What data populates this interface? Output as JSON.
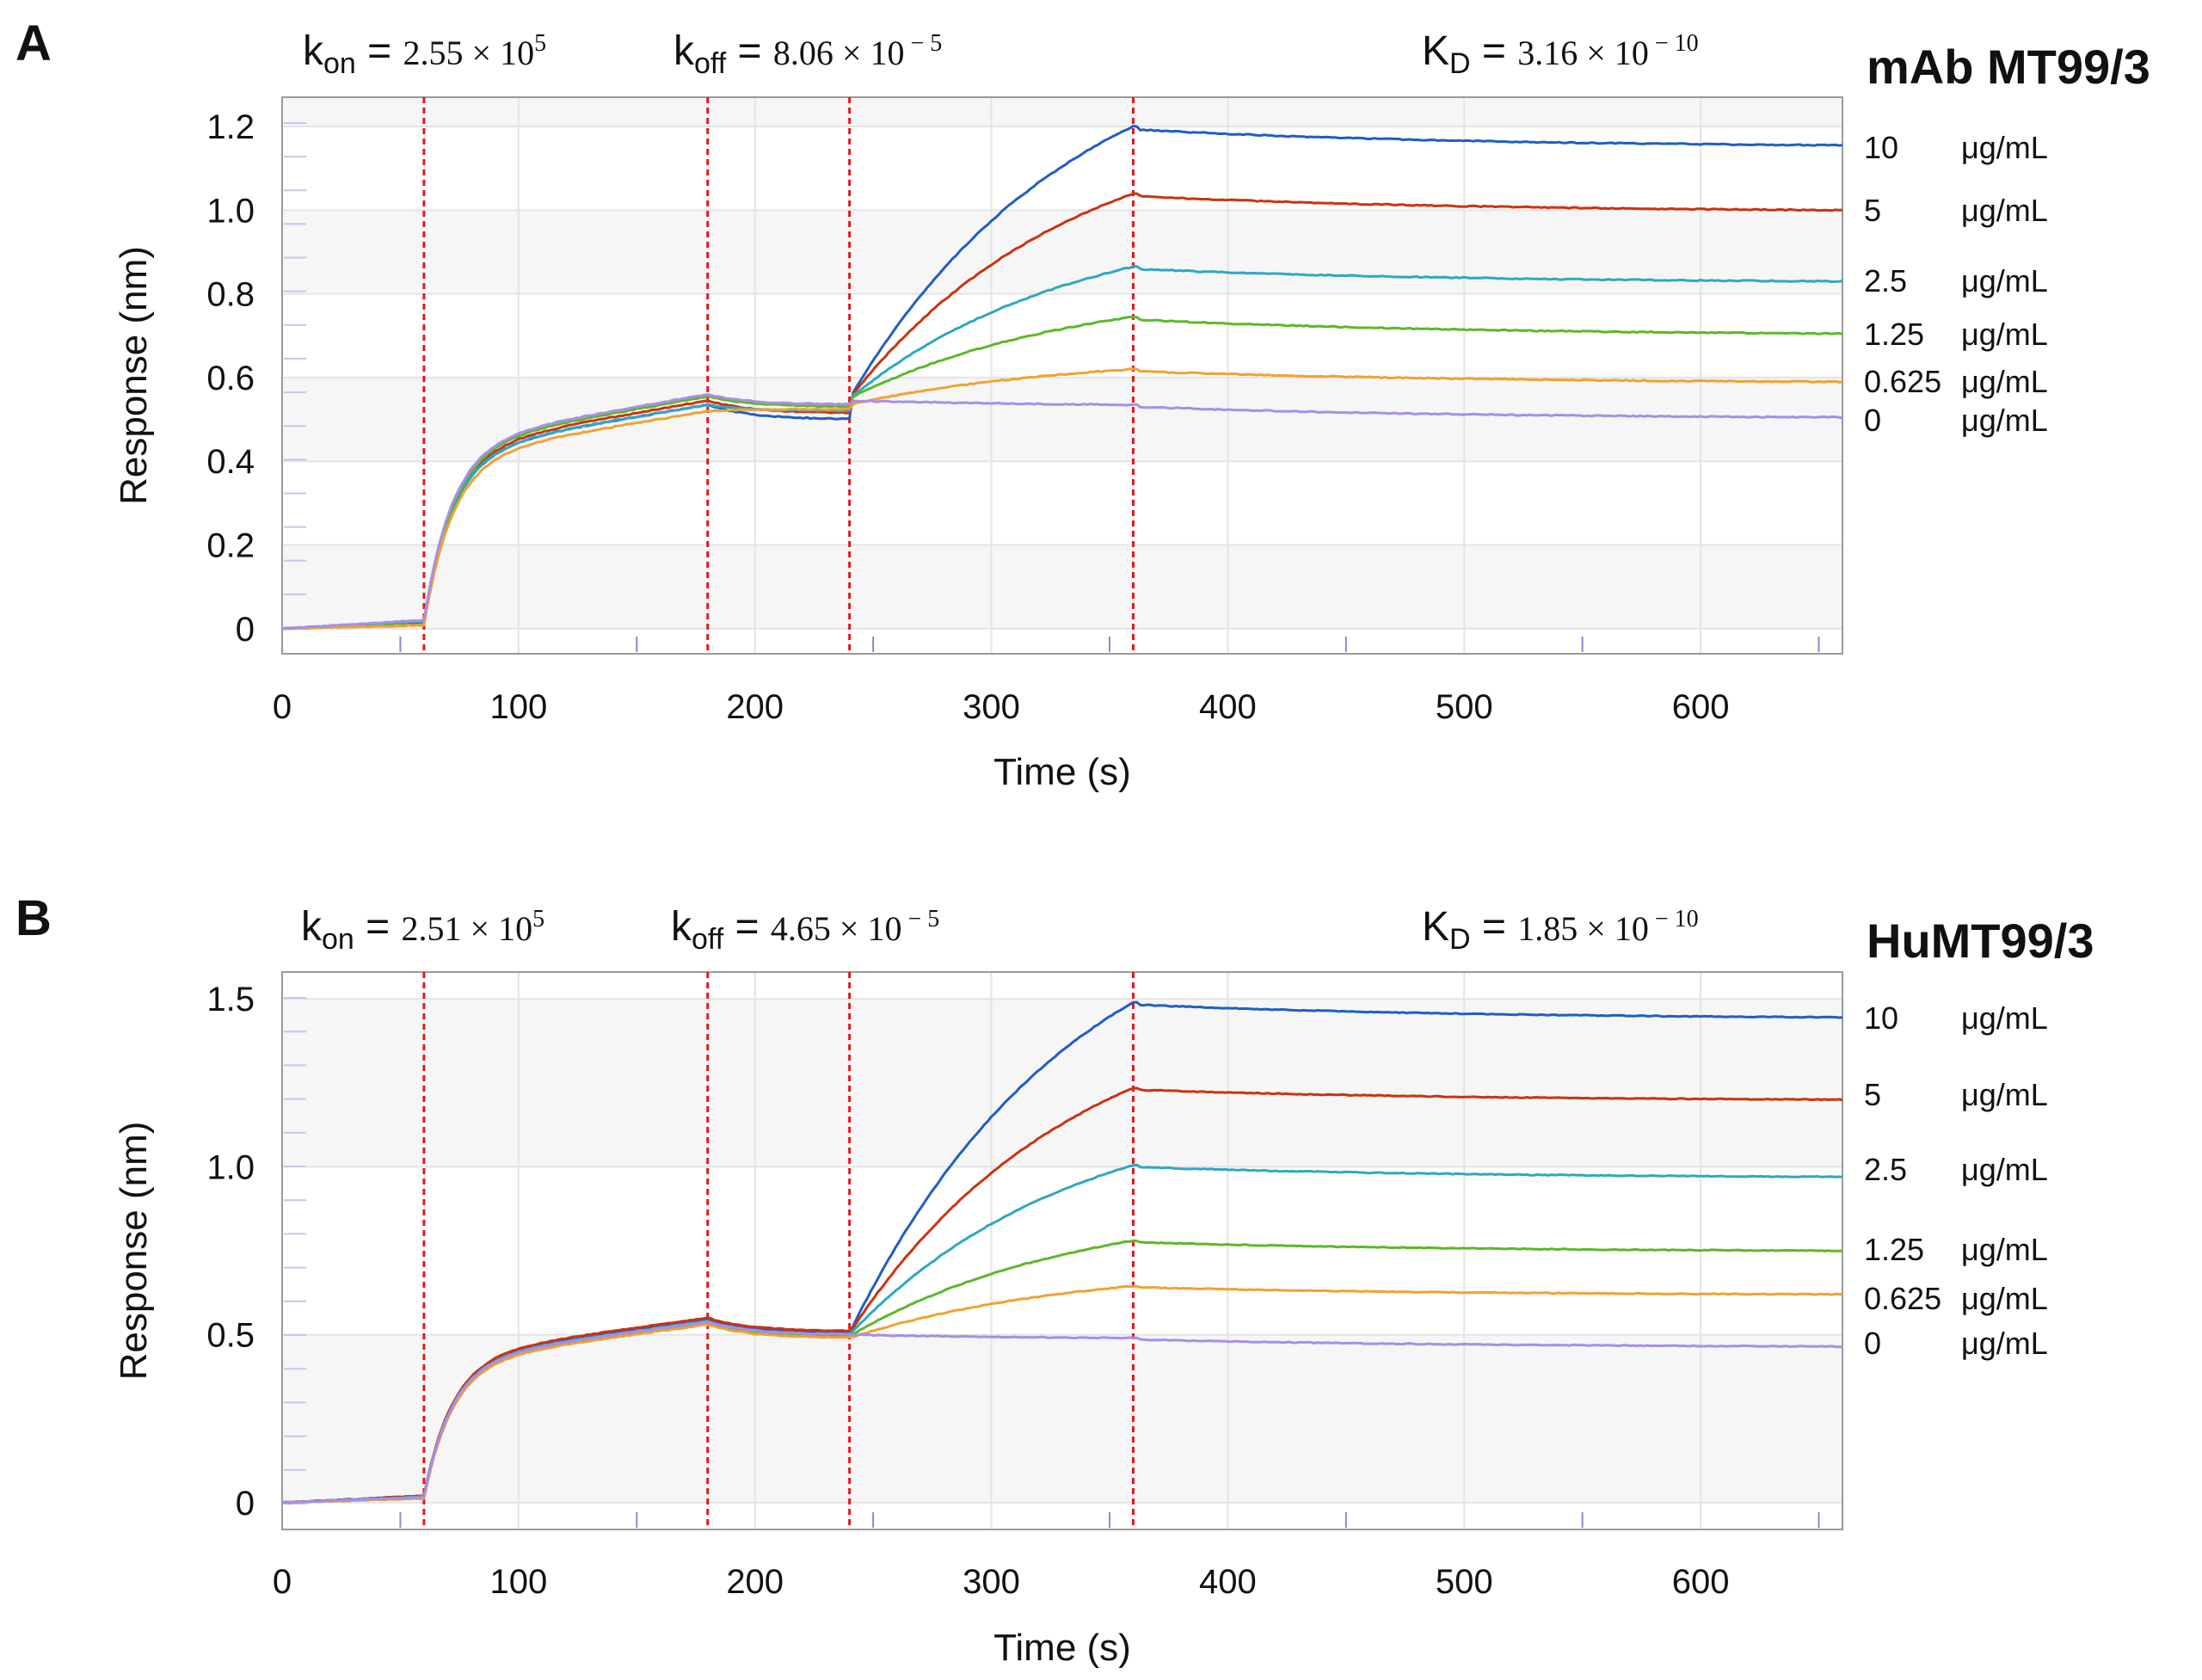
{
  "panels": [
    {
      "panel_letter": "A",
      "sample_title": "mAb MT99/3",
      "constants": {
        "kon_label": "k",
        "kon_sub": "on",
        "kon_eq": " = ",
        "kon_value": "2.55 × 10",
        "kon_exp": "5",
        "koff_label": "k",
        "koff_sub": "off",
        "koff_eq": " = ",
        "koff_value": "8.06 × 10",
        "koff_exp": " − 5",
        "kd_label": "K",
        "kd_sub": "D",
        "kd_eq": " = ",
        "kd_value": "3.16 × 10",
        "kd_exp": " − 10"
      }
    },
    {
      "panel_letter": "B",
      "sample_title": "HuMT99/3",
      "constants": {
        "kon_label": "k",
        "kon_sub": "on",
        "kon_eq": " = ",
        "kon_value": "2.51 × 10",
        "kon_exp": "5",
        "koff_label": "k",
        "koff_sub": "off",
        "koff_eq": " = ",
        "koff_value": "4.65 × 10",
        "koff_exp": " − 5",
        "kd_label": "K",
        "kd_sub": "D",
        "kd_eq": " = ",
        "kd_value": "1.85 × 10",
        "kd_exp": " − 10"
      }
    }
  ],
  "chart_data": [
    {
      "type": "line",
      "panel": "A",
      "title": "mAb MT99/3",
      "xlabel": "Time (s)",
      "ylabel": "Response (nm)",
      "xlim": [
        0,
        660
      ],
      "ylim": [
        -0.06,
        1.27
      ],
      "xticks": [
        0,
        100,
        200,
        300,
        400,
        500,
        600
      ],
      "xtick_labels": [
        "0",
        "100",
        "200",
        "300",
        "400",
        "500",
        "600"
      ],
      "yticks": [
        0,
        0.2,
        0.4,
        0.6,
        0.8,
        1.0,
        1.2
      ],
      "ytick_labels": [
        "0",
        "0.2",
        "0.4",
        "0.6",
        "0.8",
        "1.0",
        "1.2"
      ],
      "step_boundaries": [
        60,
        180,
        240,
        360
      ],
      "step_line_color": "#e8141c",
      "series": [
        {
          "name": "10",
          "unit": "μg/mL",
          "color": "#1f5fc4",
          "baseline_end": 0.015,
          "load_end": 0.535,
          "swap": 0.5,
          "assoc_start": 0.55,
          "assoc_end": 1.2,
          "dissoc_end": 1.155
        },
        {
          "name": "5",
          "unit": "μg/mL",
          "color": "#cc3311",
          "baseline_end": 0.012,
          "load_end": 0.545,
          "swap": 0.515,
          "assoc_start": 0.55,
          "assoc_end": 1.04,
          "dissoc_end": 1.0
        },
        {
          "name": "2.5",
          "unit": "μg/mL",
          "color": "#2ea8c4",
          "baseline_end": 0.018,
          "load_end": 0.535,
          "swap": 0.52,
          "assoc_start": 0.55,
          "assoc_end": 0.865,
          "dissoc_end": 0.83
        },
        {
          "name": "1.25",
          "unit": "μg/mL",
          "color": "#5cb82a",
          "baseline_end": 0.01,
          "load_end": 0.555,
          "swap": 0.53,
          "assoc_start": 0.55,
          "assoc_end": 0.745,
          "dissoc_end": 0.705
        },
        {
          "name": "0.625",
          "unit": "μg/mL",
          "color": "#f0a232",
          "baseline_end": 0.008,
          "load_end": 0.52,
          "swap": 0.525,
          "assoc_start": 0.535,
          "assoc_end": 0.62,
          "dissoc_end": 0.59
        },
        {
          "name": "0",
          "unit": "μg/mL",
          "color": "#a88ee8",
          "baseline_end": 0.02,
          "load_end": 0.56,
          "swap": 0.535,
          "assoc_start": 0.545,
          "assoc_end": 0.535,
          "dissoc_end": 0.505
        }
      ]
    },
    {
      "type": "line",
      "panel": "B",
      "title": "HuMT99/3",
      "xlabel": "Time (s)",
      "ylabel": "Response (nm)",
      "xlim": [
        0,
        660
      ],
      "ylim": [
        -0.08,
        1.58
      ],
      "xticks": [
        0,
        100,
        200,
        300,
        400,
        500,
        600
      ],
      "xtick_labels": [
        "0",
        "100",
        "200",
        "300",
        "400",
        "500",
        "600"
      ],
      "yticks": [
        0,
        0.5,
        1.0,
        1.5
      ],
      "ytick_labels": [
        "0",
        "0.5",
        "1.0",
        "1.5"
      ],
      "step_boundaries": [
        60,
        180,
        240,
        360
      ],
      "step_line_color": "#e8141c",
      "series": [
        {
          "name": "10",
          "unit": "μg/mL",
          "color": "#1f5fc4",
          "baseline_end": 0.02,
          "load_end": 0.545,
          "swap": 0.505,
          "assoc_start": 0.505,
          "assoc_end": 1.49,
          "dissoc_end": 1.445
        },
        {
          "name": "5",
          "unit": "μg/mL",
          "color": "#cc3311",
          "baseline_end": 0.02,
          "load_end": 0.55,
          "swap": 0.51,
          "assoc_start": 0.505,
          "assoc_end": 1.235,
          "dissoc_end": 1.2
        },
        {
          "name": "2.5",
          "unit": "μg/mL",
          "color": "#2ea8c4",
          "baseline_end": 0.018,
          "load_end": 0.54,
          "swap": 0.5,
          "assoc_start": 0.5,
          "assoc_end": 1.005,
          "dissoc_end": 0.97
        },
        {
          "name": "1.25",
          "unit": "μg/mL",
          "color": "#5cb82a",
          "baseline_end": 0.015,
          "load_end": 0.535,
          "swap": 0.495,
          "assoc_start": 0.495,
          "assoc_end": 0.78,
          "dissoc_end": 0.75
        },
        {
          "name": "0.625",
          "unit": "μg/mL",
          "color": "#f0a232",
          "baseline_end": 0.012,
          "load_end": 0.53,
          "swap": 0.49,
          "assoc_start": 0.49,
          "assoc_end": 0.645,
          "dissoc_end": 0.62
        },
        {
          "name": "0",
          "unit": "μg/mL",
          "color": "#a88ee8",
          "baseline_end": 0.016,
          "load_end": 0.538,
          "swap": 0.5,
          "assoc_start": 0.5,
          "assoc_end": 0.49,
          "dissoc_end": 0.465
        }
      ]
    }
  ]
}
